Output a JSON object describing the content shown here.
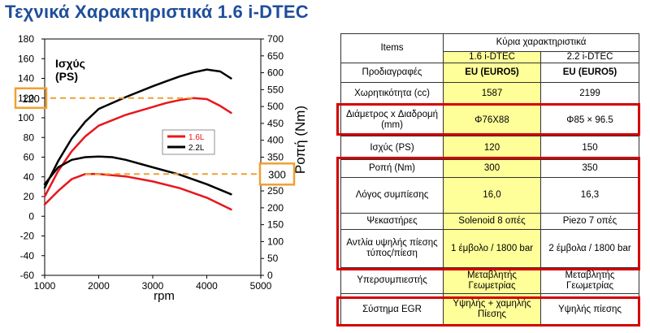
{
  "page": {
    "title": "Τεχνικά Χαρακτηριστικά 1.6 i-DTEC"
  },
  "chart_data": {
    "type": "line",
    "x_label": "rpm",
    "x_range": [
      1000,
      5000
    ],
    "x_ticks": [
      "1000",
      "2000",
      "3000",
      "4000",
      "5000"
    ],
    "y_left_label": "Ισχύς (PS)",
    "y_left_range": [
      -60,
      180
    ],
    "y_left_ticks": [
      "-60",
      "-40",
      "-20",
      "0",
      "20",
      "40",
      "60",
      "80",
      "100",
      "120",
      "140",
      "160",
      "180"
    ],
    "y_right_label": "Ροπή (Nm)",
    "y_right_range": [
      0,
      700
    ],
    "y_right_ticks": [
      "0",
      "50",
      "100",
      "150",
      "200",
      "250",
      "300",
      "350",
      "400",
      "450",
      "500",
      "550",
      "600",
      "650",
      "700"
    ],
    "legend": [
      {
        "name": "1.6L",
        "color": "#e8161b"
      },
      {
        "name": "2.2L",
        "color": "#000000"
      }
    ],
    "series": [
      {
        "name": "1.6L",
        "quantity": "power",
        "axis": "left",
        "color": "#e8161b",
        "x": [
          1000,
          1250,
          1500,
          1750,
          2000,
          2500,
          3000,
          3250,
          3500,
          3750,
          4000,
          4250,
          4450
        ],
        "y": [
          20,
          46,
          66,
          81,
          92,
          103,
          111,
          115,
          118,
          120,
          119,
          112,
          105
        ]
      },
      {
        "name": "2.2L",
        "quantity": "power",
        "axis": "left",
        "color": "#000000",
        "x": [
          1000,
          1250,
          1500,
          1750,
          2000,
          2500,
          3000,
          3250,
          3500,
          3750,
          4000,
          4250,
          4450
        ],
        "y": [
          29,
          56,
          79,
          96,
          109,
          121,
          132,
          137,
          142,
          146,
          149,
          147,
          140
        ]
      },
      {
        "name": "1.6L",
        "quantity": "torque",
        "axis": "right",
        "color": "#e8161b",
        "x": [
          1000,
          1250,
          1500,
          1750,
          2000,
          2500,
          3000,
          3500,
          4000,
          4450
        ],
        "y": [
          210,
          250,
          285,
          300,
          300,
          293,
          278,
          258,
          230,
          195
        ]
      },
      {
        "name": "2.2L",
        "quantity": "torque",
        "axis": "right",
        "color": "#000000",
        "x": [
          1000,
          1250,
          1500,
          1750,
          2000,
          2250,
          2500,
          3000,
          3500,
          4000,
          4450
        ],
        "y": [
          270,
          320,
          342,
          350,
          352,
          350,
          342,
          320,
          298,
          270,
          240
        ]
      }
    ],
    "callouts": [
      {
        "axis": "left",
        "value": "120"
      },
      {
        "axis": "right",
        "value": "300"
      }
    ]
  },
  "table": {
    "header": {
      "items": "Items",
      "group": "Κύρια χαρακτηριστικά",
      "col1": "1.6 i-DTEC",
      "col2": "2.2 i-DTEC"
    },
    "rows": [
      {
        "label": "Προδιαγραφές",
        "v1": "EU (EURO5)",
        "v2": "EU (EURO5)"
      },
      {
        "label": "Χωρητικότητα (cc)",
        "v1": "1587",
        "v2": "2199"
      },
      {
        "label": "Διάμετρος x Διαδρομή (mm)",
        "v1": "Φ76X88",
        "v2": "Φ85 × 96.5"
      },
      {
        "label": "Ισχύς (PS)",
        "v1": "120",
        "v2": "150"
      },
      {
        "label": "Ροπή (Nm)",
        "v1": "300",
        "v2": "350"
      },
      {
        "label": "Λόγος συμπίεσης",
        "v1": "16,0",
        "v2": "16,3"
      },
      {
        "label": "Ψεκαστήρες",
        "v1": "Solenoid 8 οπές",
        "v2": "Piezo 7 οπές"
      },
      {
        "label": "Αντλία υψηλής πίεσης τύπος/πίεση",
        "v1": "1 έμβολο / 1800 bar",
        "v2": "2 έμβολα / 1800 bar"
      },
      {
        "label": "Υπερσυμπιεστής",
        "v1": "Μεταβλητής Γεωμετρίας",
        "v2": "Μεταβλητής Γεωμετρίας"
      },
      {
        "label": "Σύστημα EGR",
        "v1": "Υψηλής + χαμηλής Πίεσης",
        "v2": "Υψηλής πίεσης"
      }
    ]
  },
  "colors": {
    "title": "#1f4e9a",
    "highlight_red": "#d40000",
    "callout_orange": "#f0a030",
    "yellow_cell": "#ffff99"
  }
}
